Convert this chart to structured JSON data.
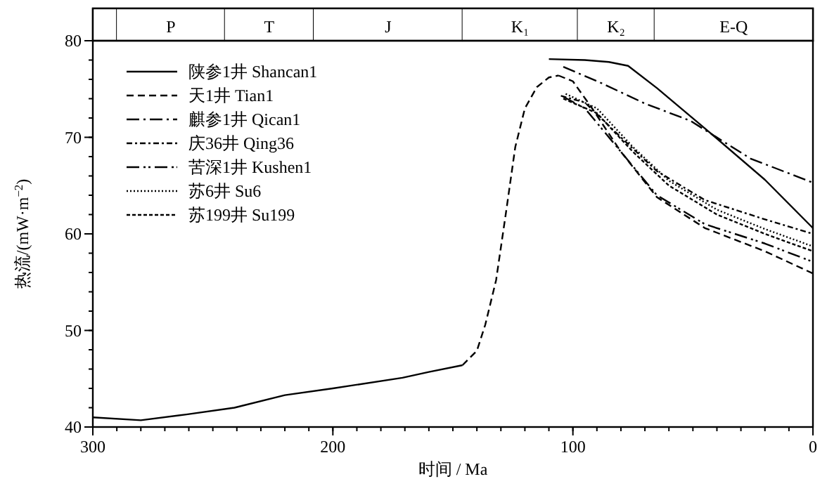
{
  "chart_data": {
    "type": "line",
    "xlabel": "时间 / Ma",
    "ylabel": "热流/(mW·m$^{−2}$)",
    "xlim": [
      300,
      0
    ],
    "ylim": [
      40,
      80
    ],
    "xticks": [
      300,
      200,
      100,
      0
    ],
    "yticks": [
      40,
      50,
      60,
      70,
      80
    ],
    "legend": "top left",
    "bands": [
      {
        "axis": "x",
        "from": 300,
        "to": 290,
        "label": null
      },
      {
        "axis": "x",
        "from": 290,
        "to": 245,
        "label": "P"
      },
      {
        "axis": "x",
        "from": 245,
        "to": 208,
        "label": "T"
      },
      {
        "axis": "x",
        "from": 208,
        "to": 146,
        "label": "J"
      },
      {
        "axis": "x",
        "from": 146,
        "to": 98,
        "label": "K₁"
      },
      {
        "axis": "x",
        "from": 98,
        "to": 66,
        "label": "K₂"
      },
      {
        "axis": "x",
        "from": 66,
        "to": 0,
        "label": "E-Q"
      }
    ],
    "series": [
      {
        "color": "#000000",
        "line_style": "solid",
        "x": [
          300,
          280,
          261,
          241,
          220,
          200,
          171,
          160,
          146
        ],
        "values": [
          41.0,
          40.7,
          41.3,
          42.0,
          43.3,
          44.0,
          45.1,
          45.7,
          46.4
        ]
      },
      {
        "color": "#000000",
        "line_style": "dashed",
        "x": [
          146,
          140,
          136.5,
          132,
          128,
          124,
          120,
          115,
          110,
          106
        ],
        "values": [
          46.4,
          47.9,
          50.6,
          55.2,
          62,
          69,
          73,
          75.2,
          76.2,
          76.4
        ]
      },
      {
        "name": "陕参1井  Shancan1",
        "color": "#000000",
        "line_style": "solid",
        "x": [
          110,
          95,
          85,
          77,
          65,
          43,
          20,
          0
        ],
        "values": [
          78.1,
          78.0,
          77.8,
          77.4,
          75.1,
          70.5,
          65.6,
          60.6
        ]
      },
      {
        "name": "天1井  Tian1",
        "color": "#000000",
        "line_style": "dashed",
        "x": [
          106,
          100,
          92,
          80,
          65,
          45,
          20,
          0
        ],
        "values": [
          76.4,
          75.8,
          73,
          68.5,
          63.8,
          60.6,
          58.2,
          55.9
        ]
      },
      {
        "name": "麒参1井  Qican1",
        "color": "#000000",
        "line_style": "dashdot",
        "x": [
          104,
          88,
          70,
          51,
          26,
          0
        ],
        "values": [
          77.3,
          75.6,
          73.5,
          71.7,
          67.8,
          65.3
        ]
      },
      {
        "name": "庆36井  Qing36",
        "color": "#000000",
        "line_style": "shortdashdot",
        "x": [
          105,
          95,
          80,
          65,
          45,
          20,
          0
        ],
        "values": [
          74.3,
          73.6,
          70,
          66.5,
          63.5,
          61.5,
          60.0
        ]
      },
      {
        "name": "苦深1井  Kushen1",
        "color": "#000000",
        "line_style": "dashdotdot",
        "x": [
          104,
          95,
          80,
          65,
          45,
          20,
          0
        ],
        "values": [
          74.2,
          73,
          68.5,
          64,
          61,
          59,
          57.1
        ]
      },
      {
        "name": "苏6井  Su6",
        "color": "#000000",
        "line_style": "dotted",
        "x": [
          103,
          90,
          75,
          60,
          40,
          20,
          0
        ],
        "values": [
          74.5,
          73,
          69,
          65.5,
          62.5,
          60.5,
          58.7
        ]
      },
      {
        "name": "苏199井  Su199",
        "color": "#000000",
        "line_style": "shortdashed",
        "x": [
          104,
          90,
          75,
          60,
          40,
          20,
          0
        ],
        "values": [
          74,
          72.5,
          68.5,
          65,
          62,
          60,
          58.2
        ]
      }
    ]
  }
}
